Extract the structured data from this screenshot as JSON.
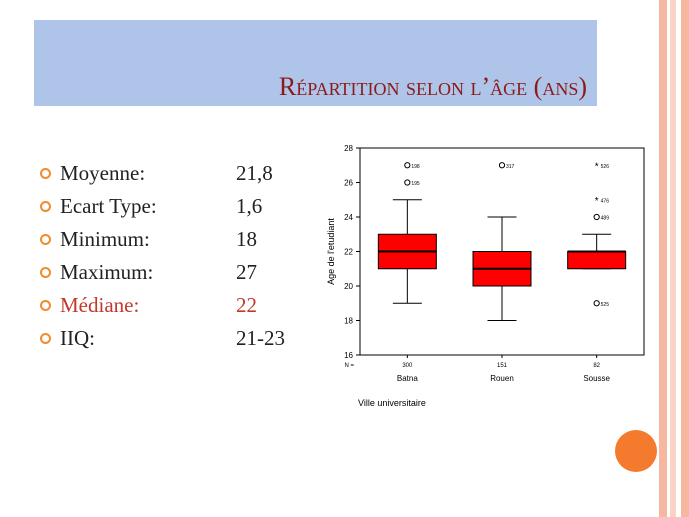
{
  "slide": {
    "title": "Répartition selon l’âge (ans)",
    "accent_color": "#f28a2e",
    "highlight_color": "#c0392b",
    "stats": [
      {
        "label": "Moyenne:",
        "value": "21,8",
        "highlight": false
      },
      {
        "label": "Ecart Type:",
        "value": "1,6",
        "highlight": false
      },
      {
        "label": "Minimum:",
        "value": "18",
        "highlight": false
      },
      {
        "label": "Maximum:",
        "value": "27",
        "highlight": false
      },
      {
        "label": "Médiane:",
        "value": "22",
        "highlight": true
      },
      {
        "label": "IIQ:",
        "value": "21-23",
        "highlight": false
      }
    ]
  },
  "chart_data": {
    "type": "boxplot",
    "xlabel": "Ville universitaire",
    "ylabel": "Age de l'etudiant",
    "ylim": [
      16,
      28
    ],
    "yticks": [
      16,
      18,
      20,
      22,
      24,
      26,
      28
    ],
    "n_label": "N =",
    "box_color": "#ff0000",
    "categories": [
      "Batna",
      "Rouen",
      "Sousse"
    ],
    "counts": [
      "300",
      "151",
      "82"
    ],
    "boxes": [
      {
        "category": "Batna",
        "whisker_low": 19,
        "q1": 21,
        "median": 22,
        "q3": 23,
        "whisker_high": 25,
        "outliers": [
          {
            "y": 27,
            "kind": "o",
            "label": "198"
          },
          {
            "y": 26,
            "kind": "o",
            "label": "195"
          }
        ]
      },
      {
        "category": "Rouen",
        "whisker_low": 18,
        "q1": 20,
        "median": 21,
        "q3": 22,
        "whisker_high": 24,
        "outliers": [
          {
            "y": 27,
            "kind": "o",
            "label": "317"
          }
        ]
      },
      {
        "category": "Sousse",
        "whisker_low": 21,
        "q1": 21,
        "median": 22,
        "q3": 22,
        "whisker_high": 23,
        "outliers": [
          {
            "y": 27,
            "kind": "*",
            "label": "526"
          },
          {
            "y": 25,
            "kind": "*",
            "label": "476"
          },
          {
            "y": 24,
            "kind": "o",
            "label": "489"
          },
          {
            "y": 19,
            "kind": "o",
            "label": "525"
          }
        ]
      }
    ]
  }
}
